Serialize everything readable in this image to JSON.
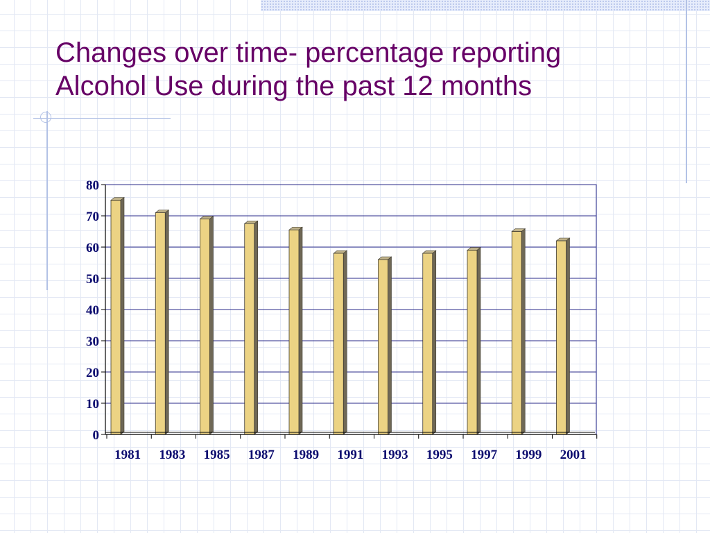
{
  "slide": {
    "title_line1": "Changes over time- percentage reporting",
    "title_line2": "Alcohol Use during the past 12 months"
  },
  "colors": {
    "title": "#660066",
    "bar_face": "#ecd384",
    "bar_side": "#6f6856",
    "bar_top": "#bfb28a",
    "gridline": "#2a2a8a",
    "axis_text": "#0a0a6e",
    "decor_line": "#b3c2e6"
  },
  "chart_data": {
    "type": "bar",
    "categories": [
      "1981",
      "1983",
      "1985",
      "1987",
      "1989",
      "1991",
      "1993",
      "1995",
      "1997",
      "1999",
      "2001"
    ],
    "values": [
      75,
      71,
      69,
      67.5,
      65.5,
      58,
      56,
      58,
      59,
      65,
      62
    ],
    "ylim": [
      0,
      80
    ],
    "yticks": [
      "0",
      "10",
      "20",
      "30",
      "40",
      "50",
      "60",
      "70",
      "80"
    ],
    "grid": true,
    "legend": "none"
  }
}
